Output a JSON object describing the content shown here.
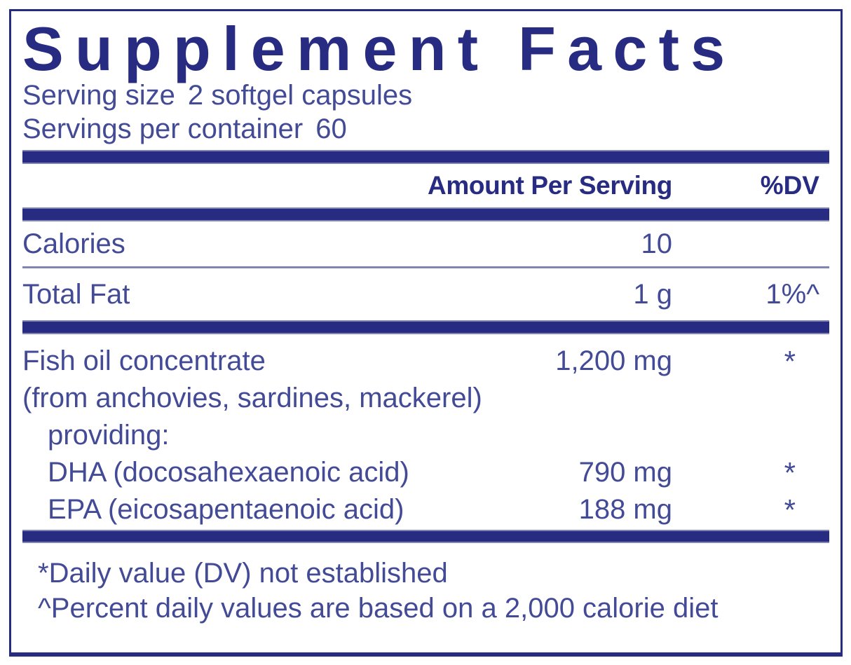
{
  "supplement_facts": {
    "title": "Supplement Facts",
    "serving": {
      "size_label": "Serving size",
      "size_value": "2 softgel capsules",
      "container_label": "Servings per container",
      "container_value": "60"
    },
    "header": {
      "amount": "Amount Per Serving",
      "dv": "%DV"
    },
    "rows": {
      "calories": {
        "name": "Calories",
        "amount": "10",
        "dv": ""
      },
      "total_fat": {
        "name": "Total Fat",
        "amount": "1 g",
        "dv": "1%^"
      },
      "fish_oil": {
        "name": "Fish oil concentrate",
        "amount": "1,200 mg",
        "dv": "*",
        "source": "(from anchovies, sardines, mackerel)",
        "providing_label": "providing:"
      },
      "dha": {
        "name": "DHA (docosahexaenoic acid)",
        "amount": "790 mg",
        "dv": "*"
      },
      "epa": {
        "name": "EPA (eicosapentaenoic acid)",
        "amount": "188 mg",
        "dv": "*"
      }
    },
    "footnotes": {
      "dv_note": "*Daily value (DV) not established",
      "percent_note": "^Percent daily values are based on a 2,000 calorie diet"
    },
    "colors": {
      "navy": "#272c82",
      "text": "#434a96",
      "rule": "#8086b0"
    }
  }
}
